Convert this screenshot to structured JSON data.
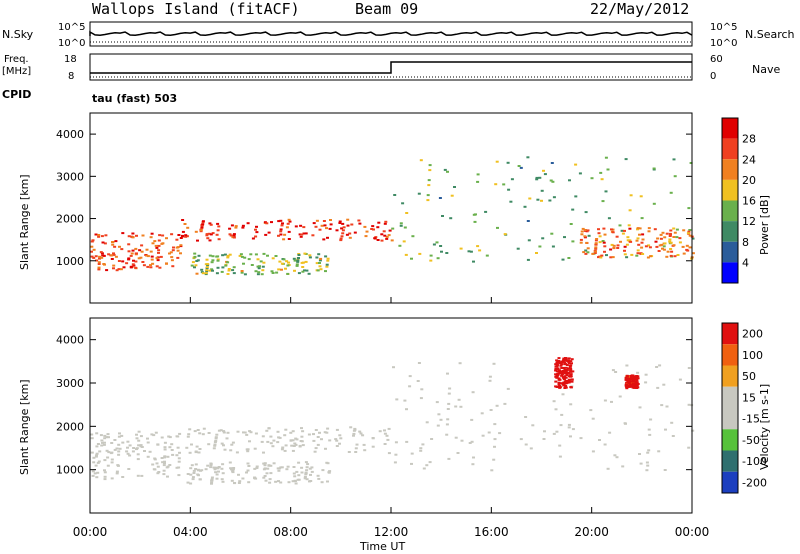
{
  "header": {
    "station": "Wallops Island (fitACF)",
    "beam": "Beam 09",
    "date": "22/May/2012"
  },
  "top_panels": {
    "nsky_label": "N.Sky",
    "nsearch_label": "N.Search",
    "noise_ticks": [
      "10^5",
      "10^0"
    ],
    "freq_label": "Freq.",
    "freq_unit": "[MHz]",
    "freq_ticks": [
      "18",
      "8"
    ],
    "nave_label": "Nave",
    "nave_ticks": [
      "60",
      "0"
    ],
    "cpid_label": "CPID",
    "cpid_value": "tau (fast) 503"
  },
  "time_axis": {
    "label": "Time UT",
    "ticks": [
      "00:00",
      "04:00",
      "08:00",
      "12:00",
      "16:00",
      "20:00",
      "00:00"
    ]
  },
  "chart_data": [
    {
      "type": "heatmap",
      "title": "",
      "ylabel": "Slant Range [km]",
      "ylim": [
        0,
        4500
      ],
      "y_ticks": [
        "1000",
        "2000",
        "3000",
        "4000"
      ],
      "colorbar": {
        "label": "Power [dB]",
        "ticks": [
          "4",
          "8",
          "12",
          "16",
          "20",
          "24",
          "28"
        ],
        "range": [
          0,
          30
        ]
      },
      "echo_bands": [
        {
          "t_start": 0.0,
          "t_end": 3.6,
          "range_km": [
            800,
            1700
          ],
          "power_db": 24
        },
        {
          "t_start": 3.6,
          "t_end": 12.0,
          "range_km": [
            1500,
            2000
          ],
          "power_db": 26
        },
        {
          "t_start": 4.0,
          "t_end": 9.5,
          "range_km": [
            700,
            1200
          ],
          "power_db": 14
        },
        {
          "t_start": 12.0,
          "t_end": 24.0,
          "range_km": [
            1000,
            3500
          ],
          "power_db": 12
        },
        {
          "t_start": 19.5,
          "t_end": 24.0,
          "range_km": [
            1100,
            1800
          ],
          "power_db": 22
        }
      ]
    },
    {
      "type": "heatmap",
      "title": "",
      "ylabel": "Slant Range [km]",
      "ylim": [
        0,
        4500
      ],
      "y_ticks": [
        "1000",
        "2000",
        "3000",
        "4000"
      ],
      "colorbar": {
        "label": "Velocity [m s-1]",
        "ticks": [
          "200",
          "100",
          "50",
          "15",
          "-15",
          "-50",
          "-100",
          "-200"
        ],
        "range": [
          -250,
          250
        ]
      },
      "echo_bands": [
        {
          "t_start": 0.0,
          "t_end": 3.6,
          "range_km": [
            800,
            1900
          ],
          "velocity_ms": 0
        },
        {
          "t_start": 3.6,
          "t_end": 12.0,
          "range_km": [
            1400,
            2000
          ],
          "velocity_ms": 0
        },
        {
          "t_start": 3.8,
          "t_end": 9.5,
          "range_km": [
            700,
            1200
          ],
          "velocity_ms": 40
        },
        {
          "t_start": 12.0,
          "t_end": 24.0,
          "range_km": [
            1000,
            3500
          ],
          "velocity_ms": 0
        },
        {
          "t_start": 18.5,
          "t_end": 19.2,
          "range_km": [
            2900,
            3600
          ],
          "velocity_ms": 220
        },
        {
          "t_start": 21.3,
          "t_end": 21.8,
          "range_km": [
            2900,
            3200
          ],
          "velocity_ms": 200
        }
      ]
    }
  ],
  "colors": {
    "power_scale": [
      "#0000ff",
      "#2a5c9a",
      "#3f8a64",
      "#6ab04c",
      "#f0c020",
      "#f08020",
      "#f04020",
      "#e00000"
    ],
    "velocity_scale": [
      "#1c3fbf",
      "#2f6f6f",
      "#56c23a",
      "#c8c8c0",
      "#c8c8c0",
      "#f0a020",
      "#f06010",
      "#e01010"
    ]
  }
}
